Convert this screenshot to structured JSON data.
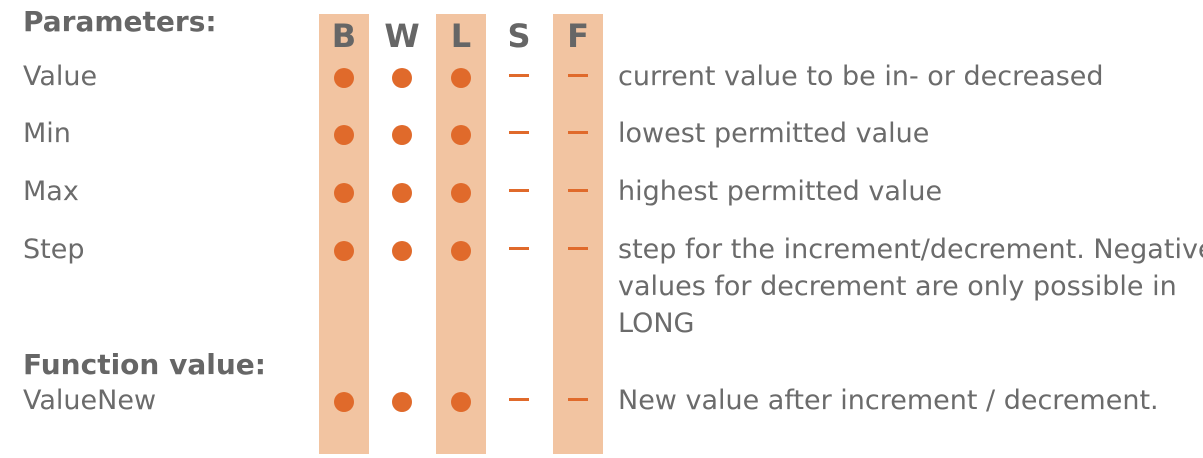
{
  "headings": {
    "parameters": "Parameters:",
    "function_value": "Function value:"
  },
  "columns": [
    "B",
    "W",
    "L",
    "S",
    "F"
  ],
  "parameters": [
    {
      "name": "Value",
      "desc": [
        "current value to be in- or decreased"
      ],
      "support": [
        "dot",
        "dot",
        "dot",
        "dash",
        "dash"
      ]
    },
    {
      "name": "Min",
      "desc": [
        "lowest permitted value"
      ],
      "support": [
        "dot",
        "dot",
        "dot",
        "dash",
        "dash"
      ]
    },
    {
      "name": "Max",
      "desc": [
        "highest permitted value"
      ],
      "support": [
        "dot",
        "dot",
        "dot",
        "dash",
        "dash"
      ]
    },
    {
      "name": "Step",
      "desc": [
        "step for the increment/decrement. Negative",
        "values for decrement are only possible in",
        "LONG"
      ],
      "support": [
        "dot",
        "dot",
        "dot",
        "dash",
        "dash"
      ]
    }
  ],
  "function_value": {
    "name": "ValueNew",
    "desc": [
      "New value after increment / decrement."
    ],
    "support": [
      "dot",
      "dot",
      "dot",
      "dash",
      "dash"
    ]
  },
  "colors": {
    "highlight_band": "#f2c4a1",
    "marker": "#e06a2b",
    "text": "#6b6b6b"
  }
}
